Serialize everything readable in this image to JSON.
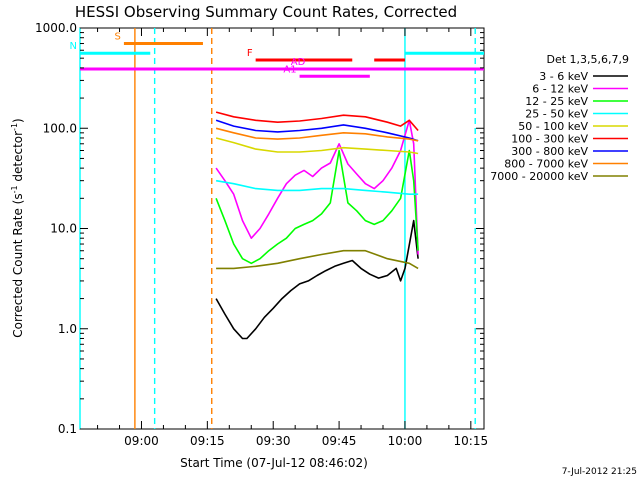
{
  "chart_data": {
    "type": "line",
    "title": "HESSI Observing Summary Count Rates, Corrected",
    "xlabel": "Start Time (07-Jul-12 08:46:02)",
    "ylabel_main": "Corrected Count Rate (s",
    "ylabel_sup1": "-1",
    "ylabel_mid": " detector",
    "ylabel_sup2": "-1",
    "ylabel_end": ")",
    "y_scale": "log",
    "ylim": [
      0.1,
      1000
    ],
    "xlim_minutes_from_start": [
      0,
      92
    ],
    "x_ticks": [
      {
        "label": "09:00",
        "t": 14
      },
      {
        "label": "09:15",
        "t": 29
      },
      {
        "label": "09:30",
        "t": 44
      },
      {
        "label": "09:45",
        "t": 59
      },
      {
        "label": "10:00",
        "t": 74
      },
      {
        "label": "10:15",
        "t": 89
      }
    ],
    "y_ticks": [
      {
        "label": "0.1",
        "v": 0.1
      },
      {
        "label": "1.0",
        "v": 1
      },
      {
        "label": "10.0",
        "v": 10
      },
      {
        "label": "100.0",
        "v": 100
      },
      {
        "label": "1000.0",
        "v": 1000
      }
    ],
    "legend": {
      "position": "right",
      "header": "Det 1,3,5,6,7,9",
      "entries": [
        {
          "label": "3 - 6 keV",
          "color": "#000000"
        },
        {
          "label": "6 - 12 keV",
          "color": "#ff00ff"
        },
        {
          "label": "12 - 25 keV",
          "color": "#00ff00"
        },
        {
          "label": "25 - 50 keV",
          "color": "#00ffff"
        },
        {
          "label": "50 - 100 keV",
          "color": "#d8d800"
        },
        {
          "label": "100 - 300 keV",
          "color": "#ff0000"
        },
        {
          "label": "300 - 800 keV",
          "color": "#0000ff"
        },
        {
          "label": "800 - 7000 keV",
          "color": "#ff8000"
        },
        {
          "label": "7000 - 20000 keV",
          "color": "#808000"
        }
      ]
    },
    "series": [
      {
        "name": "3 - 6 keV",
        "color": "#000000",
        "x": [
          31,
          33,
          35,
          37,
          38,
          40,
          42,
          44,
          46,
          48,
          50,
          52,
          54,
          56,
          58,
          60,
          62,
          64,
          66,
          68,
          70,
          72,
          73,
          74,
          76,
          77
        ],
        "y": [
          2.0,
          1.4,
          1.0,
          0.8,
          0.8,
          1.0,
          1.3,
          1.6,
          2.0,
          2.4,
          2.8,
          3.0,
          3.4,
          3.8,
          4.2,
          4.5,
          4.8,
          4.0,
          3.5,
          3.2,
          3.4,
          4.0,
          3.0,
          4.0,
          12,
          5.0
        ]
      },
      {
        "name": "6 - 12 keV",
        "color": "#ff00ff",
        "x": [
          31,
          33,
          35,
          37,
          39,
          41,
          43,
          45,
          47,
          49,
          51,
          53,
          55,
          57,
          59,
          61,
          63,
          65,
          67,
          69,
          71,
          73,
          75,
          76,
          77
        ],
        "y": [
          40,
          30,
          22,
          12,
          8,
          10,
          14,
          20,
          28,
          34,
          38,
          33,
          40,
          45,
          70,
          44,
          35,
          28,
          25,
          30,
          40,
          60,
          120,
          70,
          5.5
        ]
      },
      {
        "name": "12 - 25 keV",
        "color": "#00ff00",
        "x": [
          31,
          33,
          35,
          37,
          39,
          41,
          43,
          45,
          47,
          49,
          51,
          53,
          55,
          57,
          59,
          61,
          63,
          65,
          67,
          69,
          71,
          73,
          75,
          76,
          77
        ],
        "y": [
          20,
          12,
          7,
          5,
          4.5,
          5,
          6,
          7,
          8,
          10,
          11,
          12,
          14,
          18,
          60,
          18,
          15,
          12,
          11,
          12,
          15,
          20,
          60,
          30,
          6
        ]
      },
      {
        "name": "25 - 50 keV",
        "color": "#00ffff",
        "x": [
          31,
          35,
          40,
          45,
          50,
          55,
          60,
          65,
          70,
          75,
          77
        ],
        "y": [
          30,
          28,
          25,
          24,
          24,
          25,
          25,
          24,
          23,
          22,
          22
        ]
      },
      {
        "name": "50 - 100 keV",
        "color": "#d8d800",
        "x": [
          31,
          35,
          40,
          45,
          50,
          55,
          60,
          65,
          70,
          75,
          77
        ],
        "y": [
          80,
          72,
          62,
          58,
          58,
          60,
          64,
          62,
          60,
          58,
          56
        ]
      },
      {
        "name": "100 - 300 keV",
        "color": "#ff0000",
        "x": [
          31,
          35,
          40,
          45,
          50,
          55,
          60,
          65,
          70,
          73,
          75,
          77
        ],
        "y": [
          145,
          130,
          120,
          115,
          118,
          125,
          135,
          130,
          115,
          105,
          120,
          95
        ]
      },
      {
        "name": "300 - 800 keV",
        "color": "#0000ff",
        "x": [
          31,
          35,
          40,
          45,
          50,
          55,
          60,
          65,
          70,
          75,
          77
        ],
        "y": [
          120,
          105,
          95,
          92,
          95,
          100,
          108,
          100,
          90,
          80,
          75
        ]
      },
      {
        "name": "800 - 7000 keV",
        "color": "#ff8000",
        "x": [
          31,
          35,
          40,
          45,
          50,
          55,
          60,
          65,
          70,
          75,
          77
        ],
        "y": [
          100,
          90,
          80,
          78,
          80,
          85,
          90,
          88,
          82,
          78,
          75
        ]
      },
      {
        "name": "7000 - 20000 keV",
        "color": "#808000",
        "x": [
          31,
          35,
          40,
          45,
          50,
          55,
          60,
          65,
          70,
          75,
          77
        ],
        "y": [
          4.0,
          4.0,
          4.2,
          4.5,
          5.0,
          5.5,
          6.0,
          6.0,
          5.0,
          4.5,
          4.0
        ]
      }
    ],
    "status_bars": [
      {
        "label": "S",
        "color": "#ff8000",
        "t_start": 10,
        "t_end": 28,
        "v": 700
      },
      {
        "label": "N",
        "color": "#00ffff",
        "t_start": 0,
        "t_end": 16,
        "v": 560
      },
      {
        "label": "",
        "color": "#00ffff",
        "t_start": 74,
        "t_end": 92,
        "v": 560
      },
      {
        "label": "",
        "color": "#ff00ff",
        "t_start": 0,
        "t_end": 92,
        "v": 390
      },
      {
        "label": "F",
        "color": "#ff0000",
        "t_start": 40,
        "t_end": 62,
        "v": 480
      },
      {
        "label": "",
        "color": "#ff0000",
        "t_start": 67,
        "t_end": 74,
        "v": 480
      },
      {
        "label": "AD",
        "color": "#ff00ff",
        "t_start": 52,
        "t_end": 56,
        "v": 390
      },
      {
        "label": "A1",
        "color": "#ff00ff",
        "t_start": 50,
        "t_end": 66,
        "v": 330
      }
    ],
    "vertical_lines": [
      {
        "t": 0,
        "color": "#00ffff",
        "style": "solid"
      },
      {
        "t": 12.5,
        "color": "#ff8000",
        "style": "solid"
      },
      {
        "t": 17,
        "color": "#00ffff",
        "style": "dashed"
      },
      {
        "t": 30,
        "color": "#ff8000",
        "style": "dashed"
      },
      {
        "t": 74,
        "color": "#00ffff",
        "style": "solid"
      },
      {
        "t": 90,
        "color": "#00ffff",
        "style": "dashed"
      }
    ],
    "timestamp": "7-Jul-2012 21:25"
  }
}
